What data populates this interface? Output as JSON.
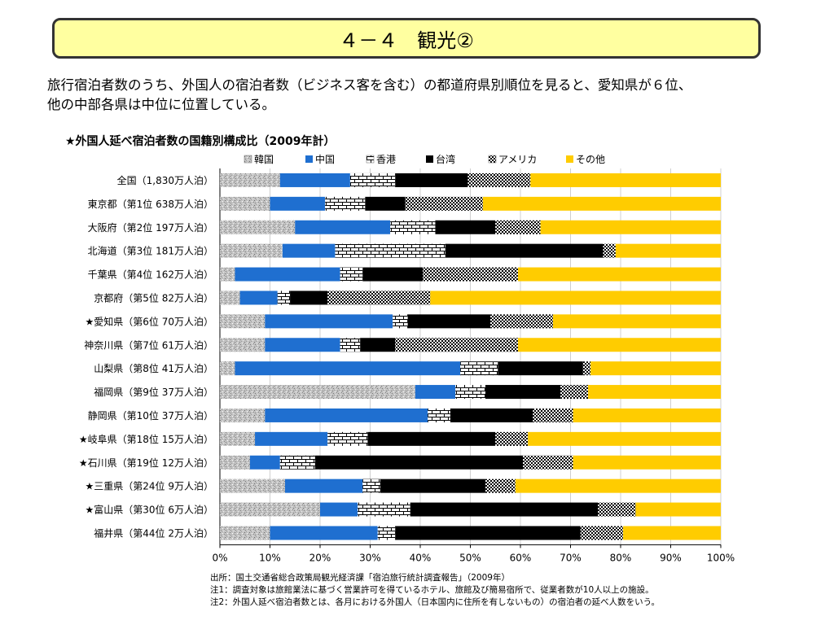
{
  "page": {
    "title": "４－４　観光②",
    "intro_lines": [
      "旅行宿泊者数のうち、外国人の宿泊者数（ビジネス客を含む）の都道府県別順位を見ると、愛知県が６位、",
      "他の中部各県は中位に位置している。"
    ],
    "notes": [
      "出所：国土交通省総合政策局観光経済課「宿泊旅行統計調査報告」（2009年）",
      "注1：調査対象は旅館業法に基づく営業許可を得ているホテル、旅館及び簡易宿所で、従業者数が10人以上の施設。",
      "注2：外国人延べ宿泊者数とは、各月における外国人（日本国内に住所を有しないもの）の宿泊者の延べ人数をいう。"
    ]
  },
  "chart_data": {
    "type": "bar",
    "orientation": "horizontal",
    "stacked": true,
    "title": "★外国人延べ宿泊者数の国籍別構成比（2009年計）",
    "xlim": [
      0,
      100
    ],
    "x_ticks": [
      "0%",
      "10%",
      "20%",
      "30%",
      "40%",
      "50%",
      "60%",
      "70%",
      "80%",
      "90%",
      "100%"
    ],
    "legend_position": "top",
    "categories": [
      "全国（1,830万人泊）",
      "東京都（第1位 638万人泊）",
      "大阪府（第2位 197万人泊）",
      "北海道（第3位 181万人泊）",
      "千葉県（第4位 162万人泊）",
      "京都府（第5位 82万人泊）",
      "★愛知県（第6位 70万人泊）",
      "神奈川県（第7位 61万人泊）",
      "山梨県（第8位 41万人泊）",
      "福岡県（第9位 37万人泊）",
      "静岡県（第10位 37万人泊）",
      "★岐阜県（第18位 15万人泊）",
      "★石川県（第19位 12万人泊）",
      "★三重県（第24位 9万人泊）",
      "★富山県（第30位 6万人泊）",
      "福井県（第44位 2万人泊）"
    ],
    "series": [
      {
        "name": "韓国",
        "pattern": "gray-speckle",
        "values": [
          12,
          10,
          15,
          12.5,
          3,
          4,
          9,
          9,
          3,
          39,
          9,
          7,
          6,
          13,
          20,
          10
        ]
      },
      {
        "name": "中国",
        "pattern": "solid",
        "color": "#1f6fd0",
        "values": [
          14,
          11,
          19,
          10.5,
          21,
          7.5,
          25.5,
          15,
          45,
          8,
          32.5,
          14.5,
          6,
          15.5,
          7.5,
          21.5
        ]
      },
      {
        "name": "香港",
        "pattern": "brick",
        "values": [
          9,
          8,
          9,
          22,
          4.5,
          2.5,
          3,
          4,
          7.5,
          6,
          4.5,
          8,
          7,
          3.5,
          10.5,
          3.5
        ]
      },
      {
        "name": "台湾",
        "pattern": "solid",
        "color": "#000000",
        "values": [
          14.5,
          8,
          12,
          31.5,
          12,
          7.5,
          16.5,
          7,
          17,
          15,
          16.5,
          25.5,
          41.5,
          21,
          37.5,
          37
        ]
      },
      {
        "name": "アメリカ",
        "pattern": "checker",
        "values": [
          12.5,
          15.5,
          9,
          2.5,
          19,
          20.5,
          12.5,
          24.5,
          1.5,
          5.5,
          8,
          6.5,
          10,
          6,
          7.5,
          8.5
        ]
      },
      {
        "name": "その他",
        "pattern": "solid",
        "color": "#ffcc00",
        "values": [
          38,
          47.5,
          36,
          21,
          40.5,
          58,
          33.5,
          40.5,
          26,
          26.5,
          29.5,
          38.5,
          29.5,
          41,
          17,
          19.5
        ]
      }
    ]
  }
}
